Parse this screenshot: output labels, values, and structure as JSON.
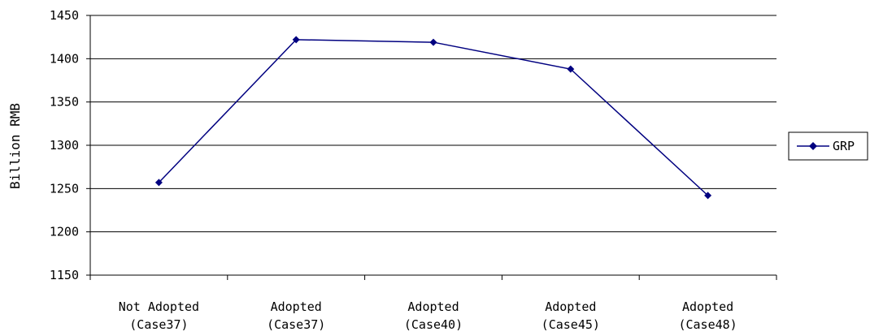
{
  "chart_data": {
    "type": "line",
    "categories": [
      [
        "Not Adopted",
        "(Case37)"
      ],
      [
        "Adopted",
        "(Case37)"
      ],
      [
        "Adopted",
        "(Case40)"
      ],
      [
        "Adopted",
        "(Case45)"
      ],
      [
        "Adopted",
        "(Case48)"
      ]
    ],
    "series": [
      {
        "name": "GRP",
        "values": [
          1257,
          1422,
          1419,
          1388,
          1242
        ]
      }
    ],
    "ylabel": "Billion RMB",
    "ylim": [
      1150,
      1450
    ],
    "yticks": [
      1150,
      1200,
      1250,
      1300,
      1350,
      1400,
      1450
    ],
    "grid": true,
    "legend": "right",
    "colors": {
      "series": "#000080",
      "grid": "#000000"
    }
  }
}
